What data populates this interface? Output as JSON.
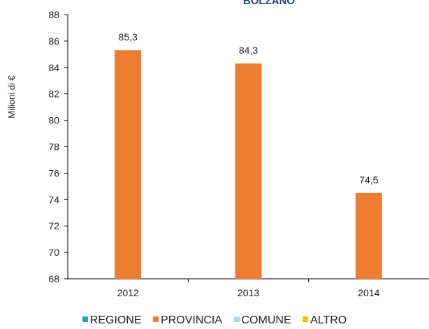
{
  "chart_data": {
    "type": "bar",
    "title": "BOLZANO",
    "xlabel": "",
    "ylabel": "Milioni di €",
    "categories": [
      "2012",
      "2013",
      "2014"
    ],
    "series": [
      {
        "name": "REGIONE",
        "color": "#2aa6a6",
        "values": [
          null,
          null,
          null
        ]
      },
      {
        "name": "PROVINCIA",
        "color": "#ed7d31",
        "values": [
          85.3,
          84.3,
          74.5
        ]
      },
      {
        "name": "COMUNE",
        "color": "#b4d8e6",
        "values": [
          null,
          null,
          null
        ]
      },
      {
        "name": "ALTRO",
        "color": "#ffc000",
        "values": [
          null,
          null,
          null
        ]
      }
    ],
    "data_labels": [
      "85,3",
      "84,3",
      "74,5"
    ],
    "ylim": [
      68,
      88
    ],
    "yticks": [
      68,
      70,
      72,
      74,
      76,
      78,
      80,
      82,
      84,
      86,
      88
    ],
    "grid": false,
    "legend_position": "bottom"
  }
}
